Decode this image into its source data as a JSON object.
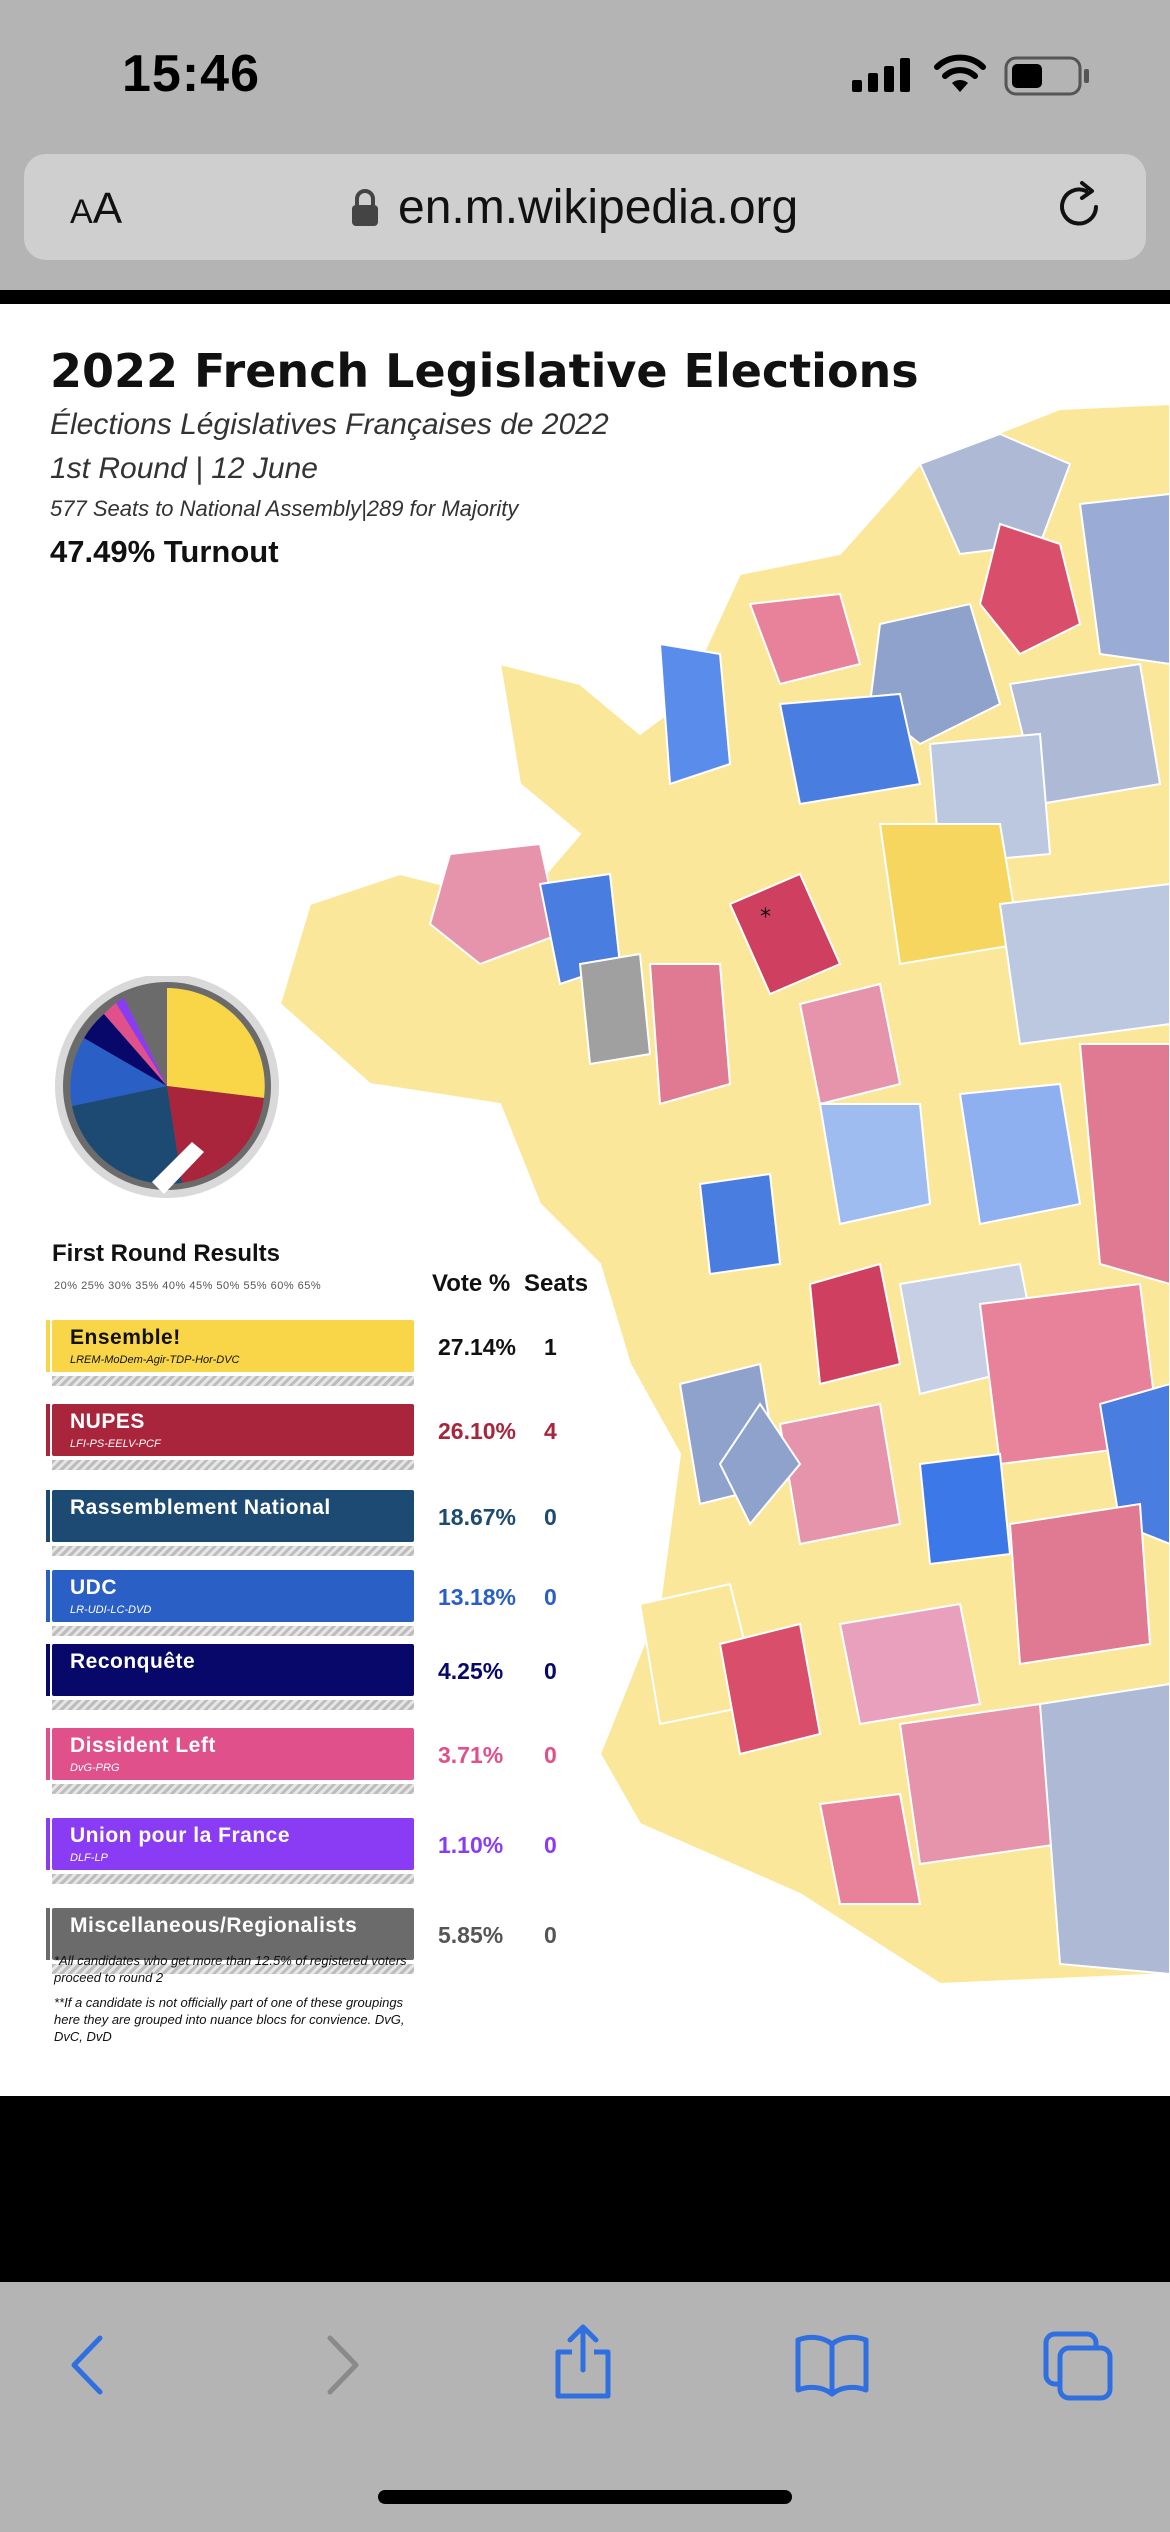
{
  "status_bar": {
    "time": "15:46"
  },
  "browser": {
    "aa_label_big": "A",
    "aa_label_small": "A",
    "url": "en.m.wikipedia.org"
  },
  "map": {
    "title": "2022 French Legislative Elections",
    "subtitle_fr": "Élections Législatives Françaises de 2022",
    "round": "1st Round | 12 June",
    "seats_info": "577 Seats to National Assembly|289 for Majority",
    "turnout": "47.49% Turnout",
    "results_title": "First Round Results",
    "scale": "20%  25%  30%  35%  40%  45%  50%  55%  60%  65%",
    "vote_header": "Vote %",
    "seats_header": "Seats",
    "parties": [
      {
        "name": "Ensemble!",
        "sub": "LREM-MoDem-Agir-TDP-Hor-DVC",
        "vote": "27.14%",
        "seats": "1",
        "color": "#f9d648",
        "text_color": "#111111"
      },
      {
        "name": "NUPES",
        "sub": "LFI-PS-EELV-PCF",
        "vote": "26.10%",
        "seats": "4",
        "color": "#a8253c",
        "text_color": "#ffffff"
      },
      {
        "name": "Rassemblement National",
        "sub": "",
        "vote": "18.67%",
        "seats": "0",
        "color": "#1c4a73",
        "text_color": "#ffffff"
      },
      {
        "name": "UDC",
        "sub": "LR-UDI-LC-DVD",
        "vote": "13.18%",
        "seats": "0",
        "color": "#2a5fc6",
        "text_color": "#ffffff"
      },
      {
        "name": "Reconquête",
        "sub": "",
        "vote": "4.25%",
        "seats": "0",
        "color": "#08086b",
        "text_color": "#ffffff"
      },
      {
        "name": "Dissident Left",
        "sub": "DvG-PRG",
        "vote": "3.71%",
        "seats": "0",
        "color": "#e0508a",
        "text_color": "#ffffff"
      },
      {
        "name": "Union pour la France",
        "sub": "DLF-LP",
        "vote": "1.10%",
        "seats": "0",
        "color": "#8a3cf5",
        "text_color": "#ffffff"
      },
      {
        "name": "Miscellaneous/Regionalists",
        "sub": "",
        "vote": "5.85%",
        "seats": "0",
        "color": "#6b6b6b",
        "text_color": "#ffffff"
      }
    ],
    "pct_colors": [
      "#111111",
      "#a8253c",
      "#1c4a73",
      "#2a5fc6",
      "#08086b",
      "#e0508a",
      "#8a3cf5",
      "#555555"
    ],
    "footnote_1": "*All candidates who get more than 12.5% of registered voters proceed to round 2",
    "footnote_2": "**If a candidate is not officially part of one of these groupings here they are grouped into nuance blocs for convience. DvG, DvC, DvD"
  }
}
